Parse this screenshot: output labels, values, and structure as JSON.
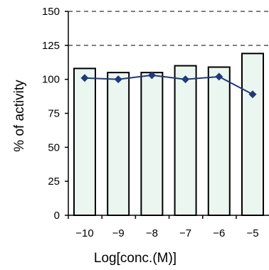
{
  "chart_data": {
    "type": "bar",
    "title": "",
    "xlabel": "Log[conc.(M)]",
    "ylabel": "% of activity",
    "categories": [
      "-10",
      "-9",
      "-8",
      "-7",
      "-6",
      "-5"
    ],
    "x_tick_labels": [
      "−10",
      "−9",
      "−8",
      "−7",
      "−6",
      "−5"
    ],
    "ylim": [
      0,
      150
    ],
    "y_ticks": [
      0,
      25,
      50,
      75,
      100,
      125,
      150
    ],
    "y_tick_labels": [
      "0",
      "25",
      "50",
      "75",
      "100",
      "125",
      "150"
    ],
    "grid": "dashed horizontal at 125 and 150",
    "legend": "none",
    "series": [
      {
        "kind": "bar",
        "values": [
          108,
          105,
          105,
          110,
          109,
          119
        ]
      },
      {
        "kind": "line-diamond-markers",
        "values": [
          101,
          100,
          103,
          100,
          102,
          89
        ]
      }
    ],
    "colors": {
      "bar_fill": "#eaf6ef",
      "bar_stroke": "#000000",
      "line": "#1f3a78",
      "marker": "#1f3a78",
      "grid": "#000000"
    }
  }
}
